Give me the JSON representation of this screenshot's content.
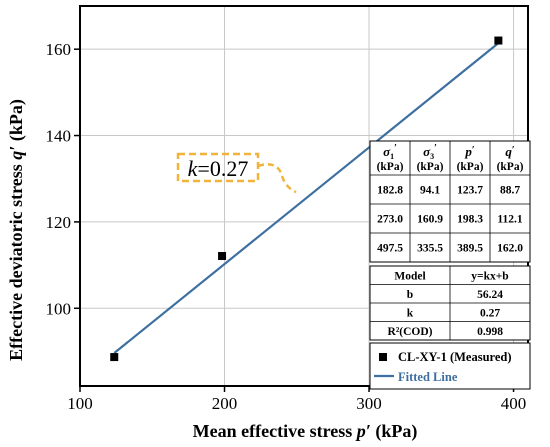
{
  "chart_data": {
    "type": "scatter",
    "xlabel": "Mean effective stress p′ (kPa)",
    "ylabel": "Effective deviatoric stress q′ (kPa)",
    "xlim": [
      100,
      410
    ],
    "ylim": [
      82,
      170
    ],
    "x_ticks": [
      "100",
      "200",
      "300",
      "400"
    ],
    "y_ticks": [
      "100",
      "120",
      "140",
      "160"
    ],
    "grid": true,
    "series": [
      {
        "name": "CL-XY-1 (Measured)",
        "kind": "scatter",
        "marker": "square",
        "color": "#000000",
        "points": [
          [
            123.7,
            88.7
          ],
          [
            198.3,
            112.1
          ],
          [
            389.5,
            162.0
          ]
        ]
      },
      {
        "name": "Fitted Line",
        "kind": "line",
        "color": "#3d6fa0",
        "x_range": [
          123.7,
          389.5
        ],
        "slope": 0.27,
        "intercept": 56.24
      }
    ],
    "annotation": {
      "text": "k = 0.27",
      "box_color": "#f0b43c"
    },
    "data_table": {
      "headers": [
        {
          "symbol": "σ",
          "sub": "1",
          "prime": "′",
          "unit": "(kPa)"
        },
        {
          "symbol": "σ",
          "sub": "3",
          "prime": "′",
          "unit": "(kPa)"
        },
        {
          "symbol": "p",
          "sub": "",
          "prime": "′",
          "unit": "(kPa)"
        },
        {
          "symbol": "q",
          "sub": "",
          "prime": "′",
          "unit": "(kPa)"
        }
      ],
      "rows": [
        [
          "182.8",
          "94.1",
          "123.7",
          "88.7"
        ],
        [
          "273.0",
          "160.9",
          "198.3",
          "112.1"
        ],
        [
          "497.5",
          "335.5",
          "389.5",
          "162.0"
        ]
      ]
    },
    "fit_table": {
      "rows": [
        [
          "Model",
          "y=kx+b"
        ],
        [
          "b",
          "56.24"
        ],
        [
          "k",
          "0.27"
        ],
        [
          "R²(COD)",
          "0.998"
        ]
      ]
    },
    "legend": {
      "placement": "bottom-right",
      "entries": [
        "CL-XY-1 (Measured)",
        "Fitted Line"
      ]
    }
  },
  "colors": {
    "fit_line": "#3d6fa0",
    "marker": "#000000",
    "annotation_box": "#f0b43c",
    "grid": "#c8c8c8"
  }
}
